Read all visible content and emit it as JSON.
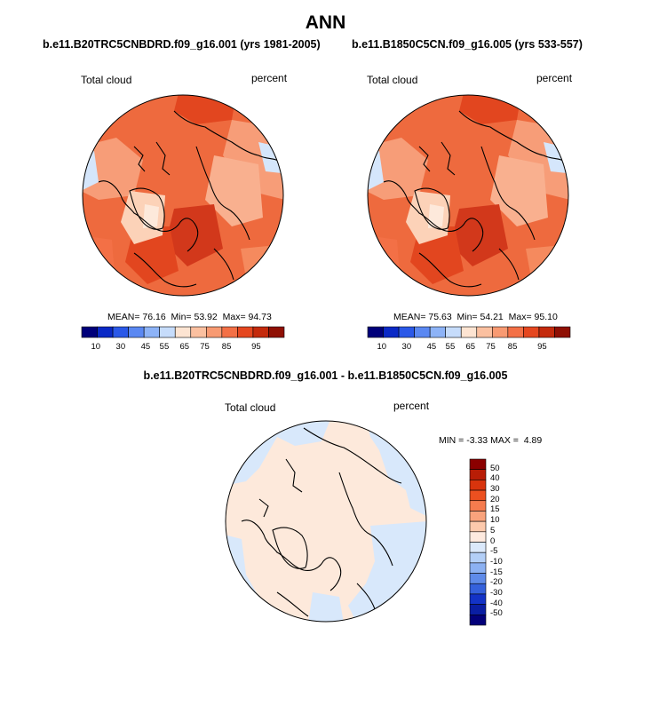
{
  "title": "ANN",
  "panels": [
    {
      "case_title": "b.e11.B20TRC5CNBDRD.f09_g16.001 (yrs 1981-2005)",
      "variable": "Total cloud",
      "units": "percent",
      "stats_mean_label": "MEAN=",
      "stats_mean": "76.16",
      "stats_min_label": "Min=",
      "stats_min": "53.92",
      "stats_max_label": "Max=",
      "stats_max": "94.73"
    },
    {
      "case_title": "b.e11.B1850C5CN.f09_g16.005 (yrs 533-557)",
      "variable": "Total cloud",
      "units": "percent",
      "stats_mean_label": "MEAN=",
      "stats_mean": "75.63",
      "stats_min_label": "Min=",
      "stats_min": "54.21",
      "stats_max_label": "Max=",
      "stats_max": "95.10"
    }
  ],
  "abs_colorbar": {
    "labels": [
      "10",
      "30",
      "45",
      "55",
      "65",
      "75",
      "85",
      "95"
    ],
    "colors": [
      "#00007a",
      "#0a29c6",
      "#2a58e8",
      "#5a88f2",
      "#8db3f7",
      "#c6dcfb",
      "#fde4d2",
      "#fbc0a0",
      "#f89a72",
      "#f37046",
      "#e5471f",
      "#c42a0c",
      "#8f1004"
    ]
  },
  "diff": {
    "title": "b.e11.B20TRC5CNBDRD.f09_g16.001 - b.e11.B1850C5CN.f09_g16.005",
    "variable": "Total cloud",
    "units": "percent",
    "min_label": "MIN =",
    "min": "-3.33",
    "max_label": "MAX =",
    "max": "4.89",
    "colorbar_labels": [
      "50",
      "40",
      "30",
      "20",
      "15",
      "10",
      "5",
      "0",
      "-5",
      "-10",
      "-15",
      "-20",
      "-30",
      "-40",
      "-50"
    ],
    "colorbar_colors": [
      "#8b0000",
      "#b81d06",
      "#d8340d",
      "#ec5020",
      "#f57b4e",
      "#f9a37c",
      "#fcc9ac",
      "#feeadf",
      "#dbe9fb",
      "#b3cff7",
      "#8cb1f2",
      "#5f8be9",
      "#3561dc",
      "#1333c7",
      "#0a1ea3",
      "#03007a"
    ]
  },
  "map_colors": {
    "ocean_abs": "#ee6a3e",
    "dark": "#d2381b",
    "light": "#f79d78",
    "pale": "#fcd2b8",
    "blue": "#d5e6fb",
    "diff_base": "#fde9db",
    "diff_blue": "#d8e8fb"
  }
}
